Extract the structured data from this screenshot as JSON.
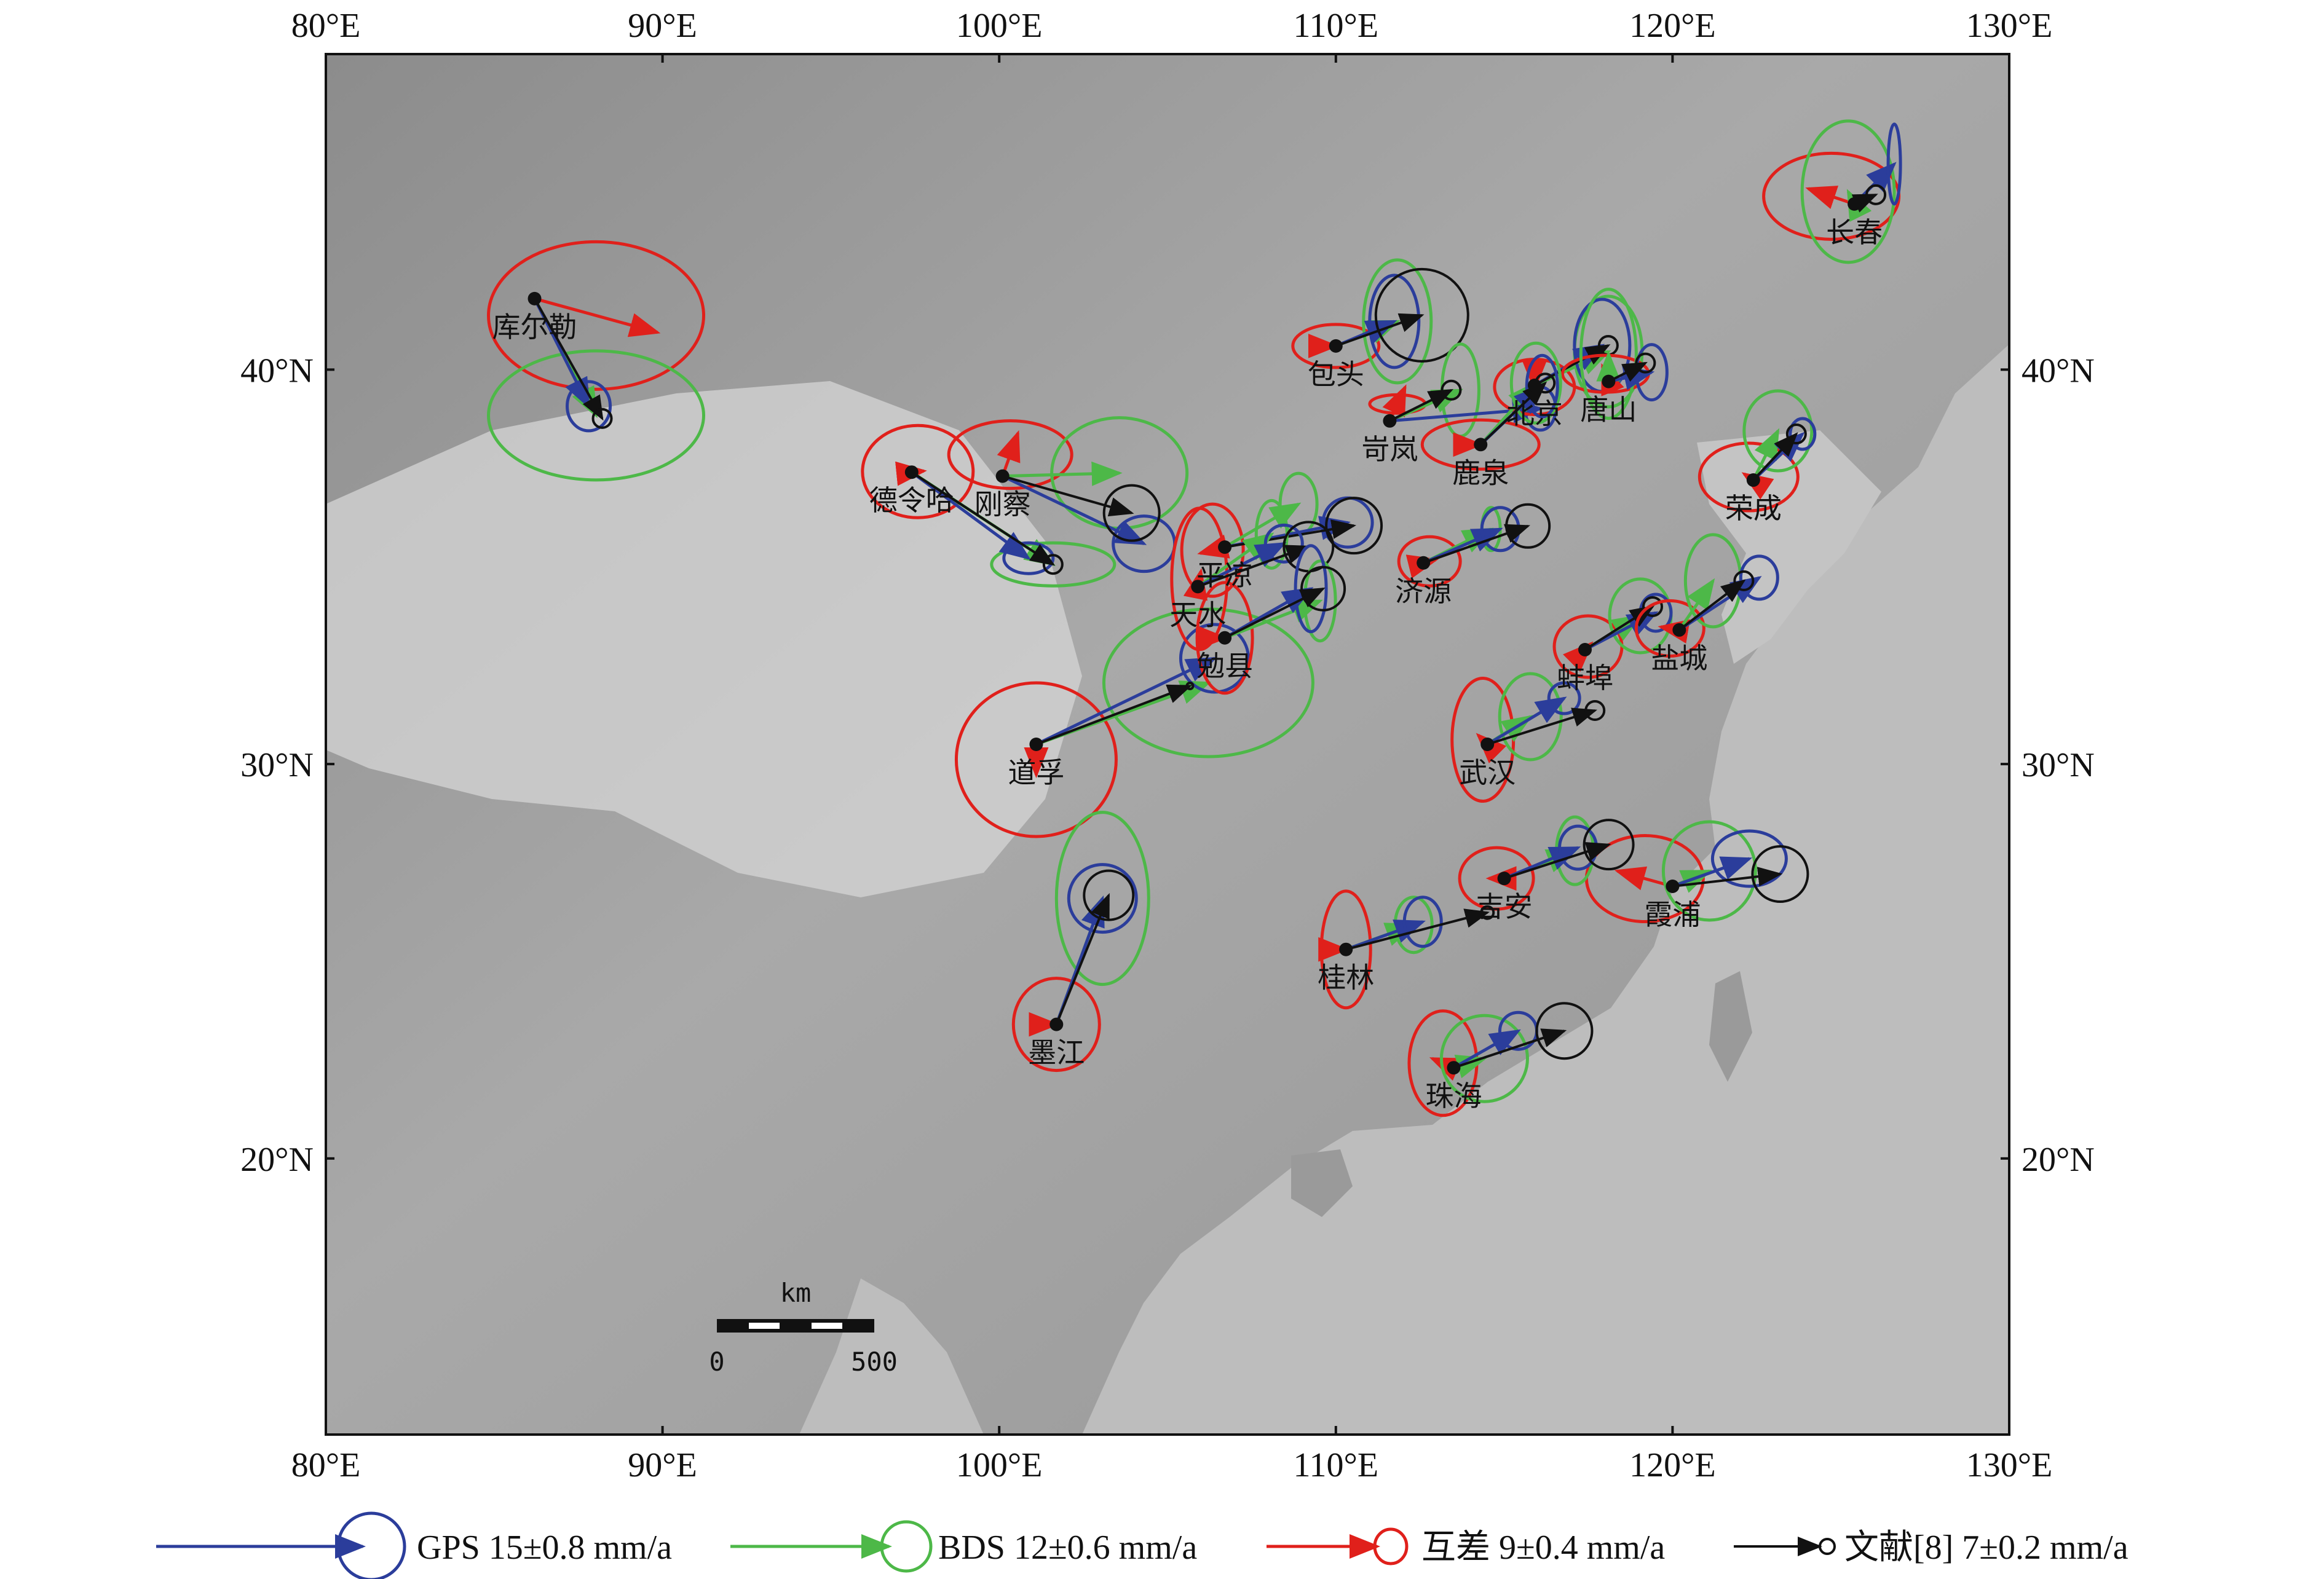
{
  "colors": {
    "gps": "#2b3d9b",
    "bds": "#4db848",
    "diff": "#e0201b",
    "lit": "#111111"
  },
  "axes": {
    "lon_ticks": [
      "80°E",
      "90°E",
      "100°E",
      "110°E",
      "120°E",
      "130°E"
    ],
    "lat_ticks": [
      "20°N",
      "30°N",
      "40°N"
    ],
    "lon_range": [
      80,
      130
    ],
    "lat_range": [
      13,
      48
    ]
  },
  "scalebar": {
    "unit": "km",
    "min": "0",
    "max": "500"
  },
  "legend": [
    {
      "key": "gps",
      "label": "GPS 15±0.8 mm/a"
    },
    {
      "key": "bds",
      "label": "BDS 12±0.6 mm/a"
    },
    {
      "key": "diff",
      "label": "互差  9±0.4 mm/a"
    },
    {
      "key": "lit",
      "label": "文献[8] 7±0.2 mm/a"
    }
  ],
  "stations": [
    {
      "name": "库尔勒",
      "lon": 86.2,
      "lat": 41.8
    },
    {
      "name": "德令哈",
      "lon": 97.4,
      "lat": 37.4
    },
    {
      "name": "刚察",
      "lon": 100.1,
      "lat": 37.3
    },
    {
      "name": "道孚",
      "lon": 101.1,
      "lat": 30.5
    },
    {
      "name": "墨江",
      "lon": 101.7,
      "lat": 23.4
    },
    {
      "name": "包头",
      "lon": 110.0,
      "lat": 40.6
    },
    {
      "name": "岢岚",
      "lon": 111.6,
      "lat": 38.7
    },
    {
      "name": "北京",
      "lon": 115.9,
      "lat": 39.6
    },
    {
      "name": "唐山",
      "lon": 118.1,
      "lat": 39.7
    },
    {
      "name": "鹿泉",
      "lon": 114.3,
      "lat": 38.1
    },
    {
      "name": "长春",
      "lon": 125.4,
      "lat": 44.2
    },
    {
      "name": "荣成",
      "lon": 122.4,
      "lat": 37.2
    },
    {
      "name": "平凉",
      "lon": 106.7,
      "lat": 35.5
    },
    {
      "name": "天水",
      "lon": 105.9,
      "lat": 34.5
    },
    {
      "name": "勉县",
      "lon": 106.7,
      "lat": 33.2
    },
    {
      "name": "济源",
      "lon": 112.6,
      "lat": 35.1
    },
    {
      "name": "蚌埠",
      "lon": 117.4,
      "lat": 32.9
    },
    {
      "name": "盐城",
      "lon": 120.2,
      "lat": 33.4
    },
    {
      "name": "武汉",
      "lon": 114.5,
      "lat": 30.5
    },
    {
      "name": "霞浦",
      "lon": 120.0,
      "lat": 26.9
    },
    {
      "name": "吉安",
      "lon": 115.0,
      "lat": 27.1
    },
    {
      "name": "桂林",
      "lon": 110.3,
      "lat": 25.3
    },
    {
      "name": "珠海",
      "lon": 113.5,
      "lat": 22.3
    }
  ]
}
